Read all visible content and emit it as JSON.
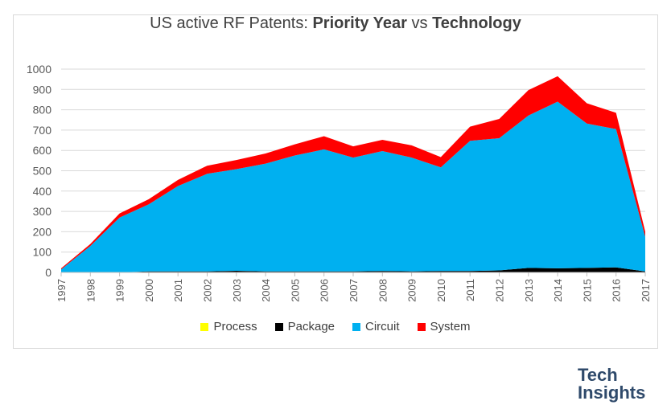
{
  "title": {
    "prefix": "US active RF Patents: ",
    "bold1": "Priority Year",
    "middle": " vs ",
    "bold2": "Technology"
  },
  "brand": {
    "line1": "Tech",
    "line2": "Insights"
  },
  "chart_data": {
    "type": "area",
    "stacked": true,
    "title": "US active RF Patents: Priority Year vs Technology",
    "categories": [
      "1997",
      "1998",
      "1999",
      "2000",
      "2001",
      "2002",
      "2003",
      "2004",
      "2005",
      "2006",
      "2007",
      "2008",
      "2009",
      "2010",
      "2011",
      "2012",
      "2013",
      "2014",
      "2015",
      "2016",
      "2017"
    ],
    "ylim": [
      0,
      1000
    ],
    "yticks": [
      0,
      100,
      200,
      300,
      400,
      500,
      600,
      700,
      800,
      900,
      1000
    ],
    "grid": true,
    "legend_position": "bottom",
    "series": [
      {
        "name": "Process",
        "color": "#ffff00",
        "values": [
          0,
          0,
          0,
          0,
          0,
          0,
          0,
          0,
          0,
          0,
          0,
          0,
          0,
          0,
          0,
          0,
          0,
          0,
          0,
          0,
          0
        ]
      },
      {
        "name": "Package",
        "color": "#000000",
        "values": [
          0,
          0,
          0,
          5,
          5,
          5,
          8,
          5,
          5,
          5,
          5,
          7,
          5,
          7,
          7,
          10,
          22,
          20,
          22,
          25,
          5
        ]
      },
      {
        "name": "Circuit",
        "color": "#00b0f0",
        "values": [
          15,
          130,
          270,
          330,
          420,
          480,
          500,
          530,
          570,
          600,
          560,
          590,
          560,
          510,
          640,
          650,
          750,
          820,
          710,
          680,
          170
        ]
      },
      {
        "name": "System",
        "color": "#ff0000",
        "values": [
          5,
          10,
          20,
          25,
          30,
          40,
          45,
          50,
          55,
          65,
          55,
          55,
          60,
          50,
          70,
          95,
          125,
          125,
          100,
          80,
          25
        ]
      }
    ]
  }
}
